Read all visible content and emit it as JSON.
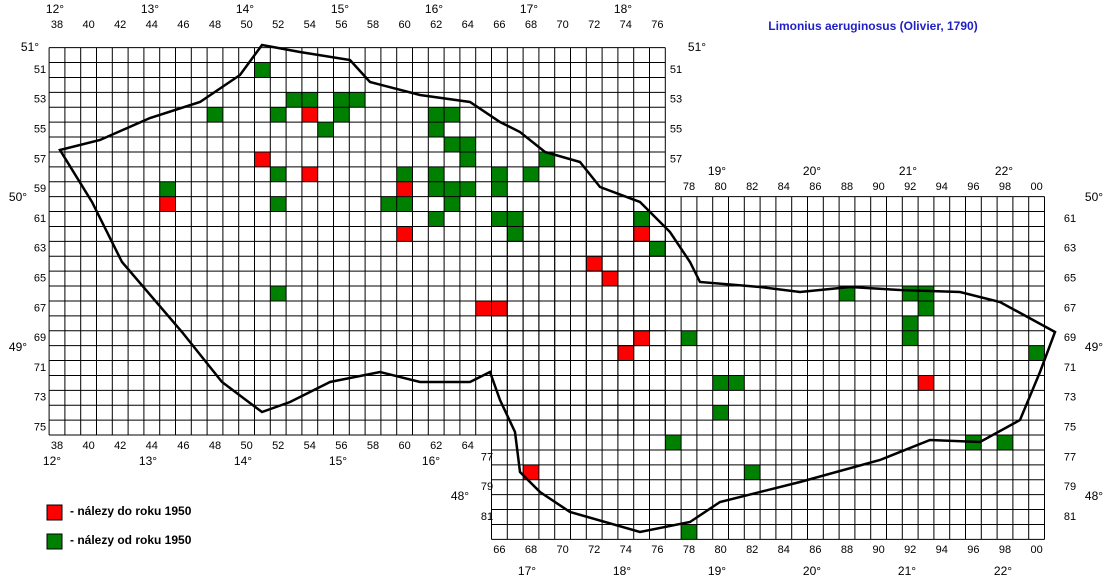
{
  "map": {
    "title": "Limonius aeruginosus (Olivier, 1790)",
    "legend": [
      "- nálezy do roku 1950",
      "- nálezy od roku 1950"
    ],
    "top_columns": [
      "38",
      "40",
      "42",
      "44",
      "46",
      "48",
      "50",
      "52",
      "54",
      "56",
      "58",
      "60",
      "62",
      "64",
      "66",
      "68",
      "70",
      "72",
      "74",
      "76"
    ],
    "bottom_west_columns": [
      "38",
      "40",
      "42",
      "44",
      "46",
      "48",
      "50",
      "52",
      "54",
      "56",
      "58",
      "60",
      "62",
      "64"
    ],
    "top_east_columns": [
      "78",
      "80",
      "82",
      "84",
      "86",
      "88",
      "90",
      "92",
      "94",
      "96",
      "98",
      "00"
    ],
    "bottom_east_columns": [
      "66",
      "68",
      "70",
      "72",
      "74",
      "76",
      "78",
      "80",
      "82",
      "84",
      "86",
      "88",
      "90",
      "92",
      "94",
      "96",
      "98",
      "00"
    ],
    "left_rows": [
      "51",
      "53",
      "55",
      "57",
      "59",
      "61",
      "63",
      "65",
      "67",
      "69",
      "71",
      "73",
      "75"
    ],
    "right_west_rows": [
      "51",
      "53",
      "55",
      "57"
    ],
    "right_east_rows": [
      "61",
      "63",
      "65",
      "67",
      "69",
      "71",
      "73",
      "75",
      "77",
      "79",
      "81"
    ],
    "left_east_rows": [
      "77",
      "79",
      "81"
    ],
    "longitudes_top": [
      "12°",
      "13°",
      "14°",
      "15°",
      "16°",
      "17°",
      "18°"
    ],
    "longitudes_east_top": [
      "19°",
      "20°",
      "21°",
      "22°"
    ],
    "longitudes_bottom": [
      "12°",
      "13°",
      "14°",
      "15°",
      "16°"
    ],
    "longitudes_east_bottom": [
      "17°",
      "18°",
      "19°",
      "20°",
      "21°",
      "22°"
    ],
    "latitudes_left": [
      "51°",
      "50°",
      "49°",
      "48°"
    ],
    "latitudes_right": [
      "51°",
      "50°",
      "49°",
      "48°"
    ],
    "before_1950": [
      [
        54,
        54
      ],
      [
        51,
        57
      ],
      [
        54,
        58
      ],
      [
        45,
        60
      ],
      [
        60,
        59
      ],
      [
        60,
        62
      ],
      [
        72,
        64
      ],
      [
        73,
        65
      ],
      [
        75,
        62
      ],
      [
        65,
        67
      ],
      [
        66,
        67
      ],
      [
        75,
        69
      ],
      [
        74,
        70
      ],
      [
        93,
        72
      ],
      [
        68,
        78
      ]
    ],
    "since_1950": [
      [
        51,
        51
      ],
      [
        53,
        53
      ],
      [
        54,
        53
      ],
      [
        56,
        53
      ],
      [
        57,
        53
      ],
      [
        48,
        54
      ],
      [
        52,
        54
      ],
      [
        55,
        55
      ],
      [
        56,
        54
      ],
      [
        62,
        54
      ],
      [
        63,
        54
      ],
      [
        62,
        55
      ],
      [
        63,
        56
      ],
      [
        64,
        56
      ],
      [
        64,
        57
      ],
      [
        69,
        57
      ],
      [
        68,
        58
      ],
      [
        52,
        58
      ],
      [
        60,
        58
      ],
      [
        62,
        58
      ],
      [
        62,
        59
      ],
      [
        63,
        59
      ],
      [
        64,
        59
      ],
      [
        66,
        58
      ],
      [
        66,
        59
      ],
      [
        45,
        59
      ],
      [
        59,
        60
      ],
      [
        60,
        60
      ],
      [
        52,
        60
      ],
      [
        63,
        60
      ],
      [
        62,
        61
      ],
      [
        66,
        61
      ],
      [
        67,
        61
      ],
      [
        67,
        62
      ],
      [
        75,
        61
      ],
      [
        76,
        63
      ],
      [
        52,
        66
      ],
      [
        88,
        66
      ],
      [
        92,
        66
      ],
      [
        93,
        66
      ],
      [
        93,
        67
      ],
      [
        92,
        68
      ],
      [
        92,
        69
      ],
      [
        78,
        69
      ],
      [
        100,
        70
      ],
      [
        80,
        72
      ],
      [
        81,
        72
      ],
      [
        80,
        74
      ],
      [
        77,
        76
      ],
      [
        96,
        76
      ],
      [
        98,
        76
      ],
      [
        82,
        78
      ],
      [
        78,
        82
      ]
    ]
  }
}
